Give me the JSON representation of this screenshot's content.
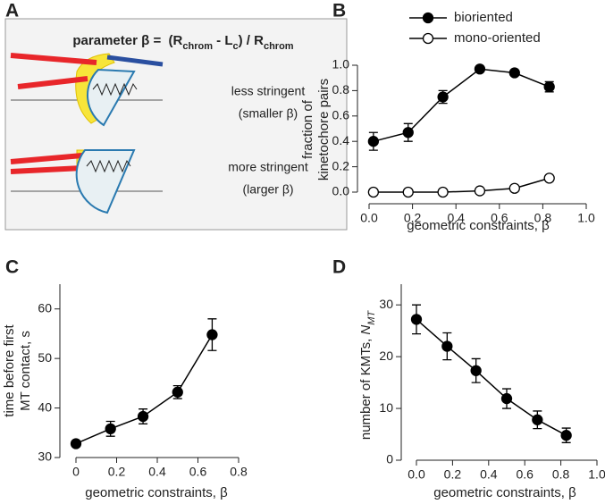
{
  "panel_a": {
    "label": "A",
    "formula": {
      "lead": "parameter β",
      "eq": "=",
      "parts": [
        {
          "text": "(R",
          "sub": "chrom"
        },
        {
          "text": " - L",
          "sub": "c"
        },
        {
          "text": ") / R",
          "sub": "chrom"
        }
      ]
    },
    "top": [
      "less stringent",
      "(smaller β)"
    ],
    "bottom": [
      "more stringent",
      "(larger β)"
    ]
  },
  "chart_data": [
    {
      "type": "line",
      "panel_label": "B",
      "x": [
        0.02,
        0.18,
        0.34,
        0.51,
        0.67,
        0.83
      ],
      "series": [
        {
          "name": "bioriented",
          "color": "#000000",
          "marker_fill": "#000000",
          "values": [
            0.4,
            0.47,
            0.75,
            0.97,
            0.94,
            0.83
          ],
          "errors": [
            0.07,
            0.07,
            0.05,
            null,
            null,
            0.04
          ]
        },
        {
          "name": "mono-oriented",
          "color": "#000000",
          "marker_fill": "#ffffff",
          "values": [
            0,
            0,
            0,
            0.01,
            0.03,
            0.11
          ]
        }
      ],
      "xlim": [
        0,
        1.0
      ],
      "ylim": [
        0,
        1.0
      ],
      "xticks": [
        {
          "value": 0,
          "label": "0.0"
        },
        0.2,
        0.4,
        0.6,
        0.8,
        {
          "value": 1,
          "label": "1.0"
        }
      ],
      "yticks": [
        {
          "value": 0,
          "label": "0.0"
        },
        0.2,
        0.4,
        0.6,
        0.8,
        {
          "value": 1,
          "label": "1.0"
        }
      ],
      "xlabel": "geometric constraints, β",
      "ylabel": [
        "fraction of",
        "kinetochore pairs"
      ],
      "legend": "top"
    },
    {
      "type": "line",
      "panel_label": "C",
      "x": [
        0,
        0.17,
        0.33,
        0.5,
        0.67
      ],
      "values": [
        32.8,
        35.8,
        38.3,
        43.2,
        54.8
      ],
      "errors": [
        null,
        1.5,
        1.5,
        1.3,
        3.2
      ],
      "color": "#000000",
      "marker_fill": "#000000",
      "xlim": [
        0,
        0.8
      ],
      "ylim": [
        30,
        65
      ],
      "xticks": [
        0,
        0.2,
        0.4,
        0.6,
        0.8
      ],
      "yticks": [
        30,
        40,
        50,
        60
      ],
      "xlabel": "geometric constraints, β",
      "ylabel": [
        "time before first",
        "MT contact, s"
      ]
    },
    {
      "type": "line",
      "panel_label": "D",
      "x": [
        0,
        0.17,
        0.33,
        0.5,
        0.67,
        0.83
      ],
      "values": [
        27.2,
        22,
        17.3,
        11.9,
        7.8,
        4.8
      ],
      "errors": [
        2.8,
        2.6,
        2.3,
        1.9,
        1.7,
        1.4
      ],
      "color": "#000000",
      "marker_fill": "#000000",
      "xlim": [
        0,
        1.0
      ],
      "ylim": [
        0,
        34
      ],
      "xticks": [
        {
          "value": 0,
          "label": "0.0"
        },
        0.2,
        0.4,
        0.6,
        0.8,
        {
          "value": 1,
          "label": "1.0"
        }
      ],
      "yticks": [
        0,
        10,
        20,
        30
      ],
      "xlabel": "geometric constraints, β",
      "ylabel_parts": {
        "text": "number of KMTs, ",
        "var": "N",
        "sub": "MT"
      }
    }
  ]
}
